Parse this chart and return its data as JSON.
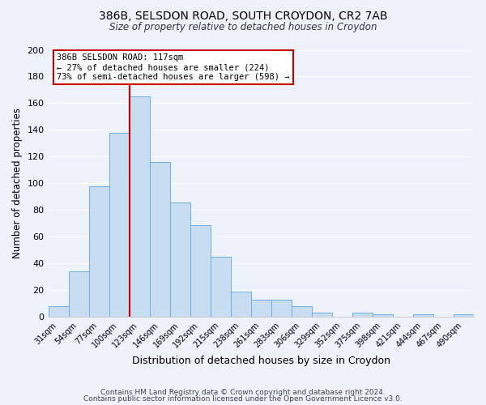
{
  "title1": "386B, SELSDON ROAD, SOUTH CROYDON, CR2 7AB",
  "title2": "Size of property relative to detached houses in Croydon",
  "xlabel": "Distribution of detached houses by size in Croydon",
  "ylabel": "Number of detached properties",
  "bin_labels": [
    "31sqm",
    "54sqm",
    "77sqm",
    "100sqm",
    "123sqm",
    "146sqm",
    "169sqm",
    "192sqm",
    "215sqm",
    "238sqm",
    "261sqm",
    "283sqm",
    "306sqm",
    "329sqm",
    "352sqm",
    "375sqm",
    "398sqm",
    "421sqm",
    "444sqm",
    "467sqm",
    "490sqm"
  ],
  "bar_values": [
    8,
    34,
    98,
    138,
    165,
    116,
    86,
    69,
    45,
    19,
    13,
    13,
    8,
    3,
    0,
    3,
    2,
    0,
    2,
    0,
    2
  ],
  "bar_color": "#c9ddf2",
  "bar_edge_color": "#6aaee8",
  "background_color": "#eef2fa",
  "grid_color": "#ffffff",
  "vline_color": "#cc0000",
  "annotation_title": "386B SELSDON ROAD: 117sqm",
  "annotation_line1": "← 27% of detached houses are smaller (224)",
  "annotation_line2": "73% of semi-detached houses are larger (598) →",
  "annotation_box_color": "#ffffff",
  "annotation_box_edge": "#cc0000",
  "ylim": [
    0,
    200
  ],
  "yticks": [
    0,
    20,
    40,
    60,
    80,
    100,
    120,
    140,
    160,
    180,
    200
  ],
  "footnote1": "Contains HM Land Registry data © Crown copyright and database right 2024.",
  "footnote2": "Contains public sector information licensed under the Open Government Licence v3.0."
}
